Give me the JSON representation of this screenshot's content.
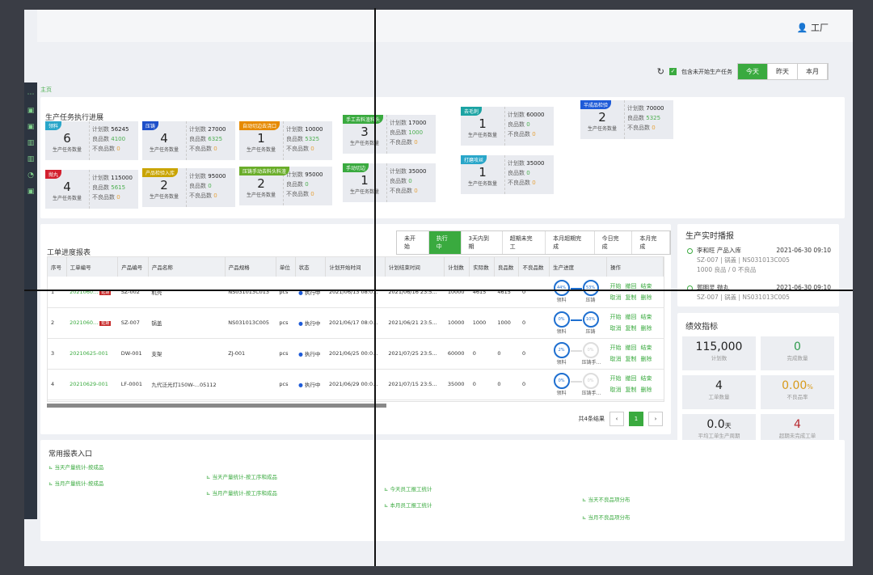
{
  "header": {
    "user": "工厂",
    "breadcrumb": "主页"
  },
  "controls": {
    "include_unstarted": "包含未开始生产任务",
    "include_checked": true,
    "periods": [
      "今天",
      "昨天",
      "本月"
    ],
    "active_period": "今天"
  },
  "progress": {
    "title": "生产任务执行进展",
    "count_label": "生产任务数量",
    "plan_label": "计划数",
    "good_label": "良品数",
    "bad_label": "不良品数",
    "cards": [
      {
        "tag": "领料",
        "color": "#29a6c9",
        "count": "6",
        "plan": "56245",
        "good": "4100",
        "bad": "0"
      },
      {
        "tag": "压铸",
        "color": "#1e4fc9",
        "count": "4",
        "plan": "27000",
        "good": "6325",
        "bad": "0"
      },
      {
        "tag": "自动切边去浇口",
        "color": "#e68a00",
        "count": "1",
        "plan": "10000",
        "good": "5325",
        "bad": "0"
      },
      {
        "tag": "手工去料渣料头",
        "color": "#3aaa3f",
        "count": "3",
        "plan": "17000",
        "good": "1000",
        "bad": "0"
      },
      {
        "tag": "去毛刺",
        "color": "#1ba3a3",
        "count": "1",
        "plan": "60000",
        "good": "0",
        "bad": "0"
      },
      {
        "tag": "半成品检验",
        "color": "#1e5bd8",
        "count": "2",
        "plan": "70000",
        "good": "5325",
        "bad": "0"
      },
      {
        "tag": "抛丸",
        "color": "#d3202f",
        "count": "4",
        "plan": "115000",
        "good": "5615",
        "bad": "0"
      },
      {
        "tag": "产品检验入库",
        "color": "#c9a400",
        "count": "2",
        "plan": "95000",
        "good": "0",
        "bad": "0"
      },
      {
        "tag": "压铸手动去料头料渣",
        "color": "#6aad2a",
        "count": "2",
        "plan": "95000",
        "good": "0",
        "bad": "0"
      },
      {
        "tag": "手动切边",
        "color": "#3aaa3f",
        "count": "1",
        "plan": "35000",
        "good": "0",
        "bad": "0"
      },
      {
        "tag": "打磨攻丝",
        "color": "#29a6c9",
        "count": "1",
        "plan": "35000",
        "good": "0",
        "bad": "0"
      }
    ]
  },
  "orders": {
    "title": "工单进度报表",
    "tabs": [
      "未开始",
      "执行中",
      "3天内到期",
      "超期未完工",
      "本月超期完成",
      "今日完成",
      "本月完成"
    ],
    "active_tab": "执行中",
    "columns": [
      "序号",
      "工单编号",
      "产品编号",
      "产品名称",
      "产品规格",
      "单位",
      "状态",
      "计划开始时间",
      "计划结束时间",
      "计划数",
      "实际数",
      "良品数",
      "不良品数",
      "生产进度",
      "操作"
    ],
    "actions": [
      "开始",
      "撤回",
      "结束",
      "取消",
      "复制",
      "删除"
    ],
    "rows": [
      {
        "no": "1",
        "code": "2021060...",
        "badge": "延期",
        "pcode": "SZ-002",
        "pname": "机壳",
        "spec": "NS031013C013",
        "unit": "pcs",
        "status": "执行中",
        "start": "2021/06/13 08:0...",
        "end": "2021/06/16 23:5...",
        "plan": "10000",
        "actual": "4615",
        "good": "4615",
        "bad": "0",
        "steps": [
          {
            "pct": "44%",
            "name": "领料",
            "on": true
          },
          {
            "pct": "53%",
            "name": "压铸",
            "on": true
          }
        ]
      },
      {
        "no": "2",
        "code": "2021060...",
        "badge": "延期",
        "pcode": "SZ-007",
        "pname": "锅盖",
        "spec": "NS031013C005",
        "unit": "pcs",
        "status": "执行中",
        "start": "2021/06/17 08:0...",
        "end": "2021/06/21 23:5...",
        "plan": "10000",
        "actual": "1000",
        "good": "1000",
        "bad": "0",
        "steps": [
          {
            "pct": "0%",
            "name": "领料",
            "on": true
          },
          {
            "pct": "10%",
            "name": "压铸",
            "on": true
          }
        ]
      },
      {
        "no": "3",
        "code": "20210625-001",
        "badge": "",
        "pcode": "DW-001",
        "pname": "支架",
        "spec": "ZJ-001",
        "unit": "pcs",
        "status": "执行中",
        "start": "2021/06/25 00:0...",
        "end": "2021/07/25 23:5...",
        "plan": "60000",
        "actual": "0",
        "good": "0",
        "bad": "0",
        "steps": [
          {
            "pct": "2%",
            "name": "领料",
            "on": true
          },
          {
            "pct": "0%",
            "name": "压铸手...",
            "on": false
          }
        ]
      },
      {
        "no": "4",
        "code": "20210629-001",
        "badge": "",
        "pcode": "LF-0001",
        "pname": "九代泛光灯150W-...05112",
        "spec": "",
        "unit": "pcs",
        "status": "执行中",
        "start": "2021/06/29 00:0...",
        "end": "2021/07/15 23:5...",
        "plan": "35000",
        "actual": "0",
        "good": "0",
        "bad": "0",
        "steps": [
          {
            "pct": "0%",
            "name": "领料",
            "on": true
          },
          {
            "pct": "0%",
            "name": "压铸手...",
            "on": false
          }
        ]
      }
    ],
    "total": "共4条结果",
    "page": "1"
  },
  "feed": {
    "title": "生产实时播报",
    "items": [
      {
        "who": "李和旺 产品入库",
        "time": "2021-06-30 09:10",
        "detail": "SZ-007 | 锅盖 | NS031013C005",
        "qty": "1000 良品 / 0 不良品"
      },
      {
        "who": "郭明灵 抛丸",
        "time": "2021-06-30 09:10",
        "detail": "SZ-007 | 锅盖 | NS031013C005",
        "qty": ""
      }
    ]
  },
  "kpi": {
    "title": "绩效指标",
    "items": [
      {
        "value": "115,000",
        "unit": "",
        "label": "计划数",
        "color": "#222"
      },
      {
        "value": "0",
        "unit": "",
        "label": "完成数量",
        "color": "#2e9b4e"
      },
      {
        "value": "4",
        "unit": "",
        "label": "工单数量",
        "color": "#222"
      },
      {
        "value": "0.00",
        "unit": "%",
        "label": "不良品率",
        "color": "#d89a1a"
      },
      {
        "value": "0.0",
        "unit": "天",
        "label": "平均工单生产周期",
        "color": "#222"
      },
      {
        "value": "4",
        "unit": "",
        "label": "超期未完成工单",
        "color": "#b8282e"
      }
    ]
  },
  "reports": {
    "title": "常用报表入口",
    "links": [
      "当天产量统计-按成品",
      "当月产量统计-按成品",
      "当天产量统计-按工序和成品",
      "当月产量统计-按工序和成品",
      "今天员工报工统计",
      "本月员工报工统计",
      "当天不良品项分布",
      "当月不良品项分布"
    ]
  }
}
